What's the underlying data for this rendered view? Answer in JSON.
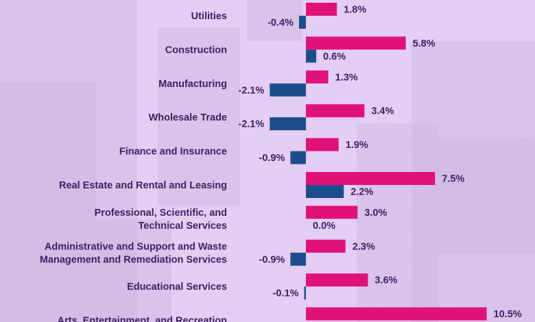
{
  "colors": {
    "background": "#e4cdf3",
    "series_a": "#e0127a",
    "series_b": "#1d4e8c",
    "text": "#3a2266"
  },
  "chart_data": {
    "type": "bar",
    "orientation": "horizontal",
    "title": "",
    "xlabel": "",
    "ylabel": "",
    "unit": "%",
    "xlim": [
      -3,
      12
    ],
    "grid": false,
    "legend": "none",
    "categories": [
      "Utilities",
      "Construction",
      "Manufacturing",
      "Wholesale Trade",
      "Finance and Insurance",
      "Real Estate and Rental and Leasing",
      "Professional, Scientific, and Technical Services",
      "Administrative and Support and Waste Management and Remediation Services",
      "Educational Services",
      "Arts, Entertainment, and Recreation"
    ],
    "category_lines": [
      [
        "Utilities"
      ],
      [
        "Construction"
      ],
      [
        "Manufacturing"
      ],
      [
        "Wholesale Trade"
      ],
      [
        "Finance and Insurance"
      ],
      [
        "Real Estate and Rental and Leasing"
      ],
      [
        "Professional, Scientific, and",
        "Technical Services"
      ],
      [
        "Administrative and Support and Waste",
        "Management and Remediation Services"
      ],
      [
        "Educational Services"
      ],
      [
        "Arts, Entertainment, and Recreation"
      ]
    ],
    "series": [
      {
        "name": "series-a",
        "color": "#e0127a",
        "values": [
          1.8,
          5.8,
          1.3,
          3.4,
          1.9,
          7.5,
          3.0,
          2.3,
          3.6,
          10.5
        ]
      },
      {
        "name": "series-b",
        "color": "#1d4e8c",
        "values": [
          -0.4,
          0.6,
          -2.1,
          -2.1,
          -0.9,
          2.2,
          0.0,
          -0.9,
          -0.1,
          null
        ]
      }
    ],
    "value_labels": [
      [
        "1.8%",
        "5.8%",
        "1.3%",
        "3.4%",
        "1.9%",
        "7.5%",
        "3.0%",
        "2.3%",
        "3.6%",
        "10.5%"
      ],
      [
        "-0.4%",
        "0.6%",
        "-2.1%",
        "-2.1%",
        "-0.9%",
        "2.2%",
        "0.0%",
        "-0.9%",
        "-0.1%",
        null
      ]
    ]
  }
}
